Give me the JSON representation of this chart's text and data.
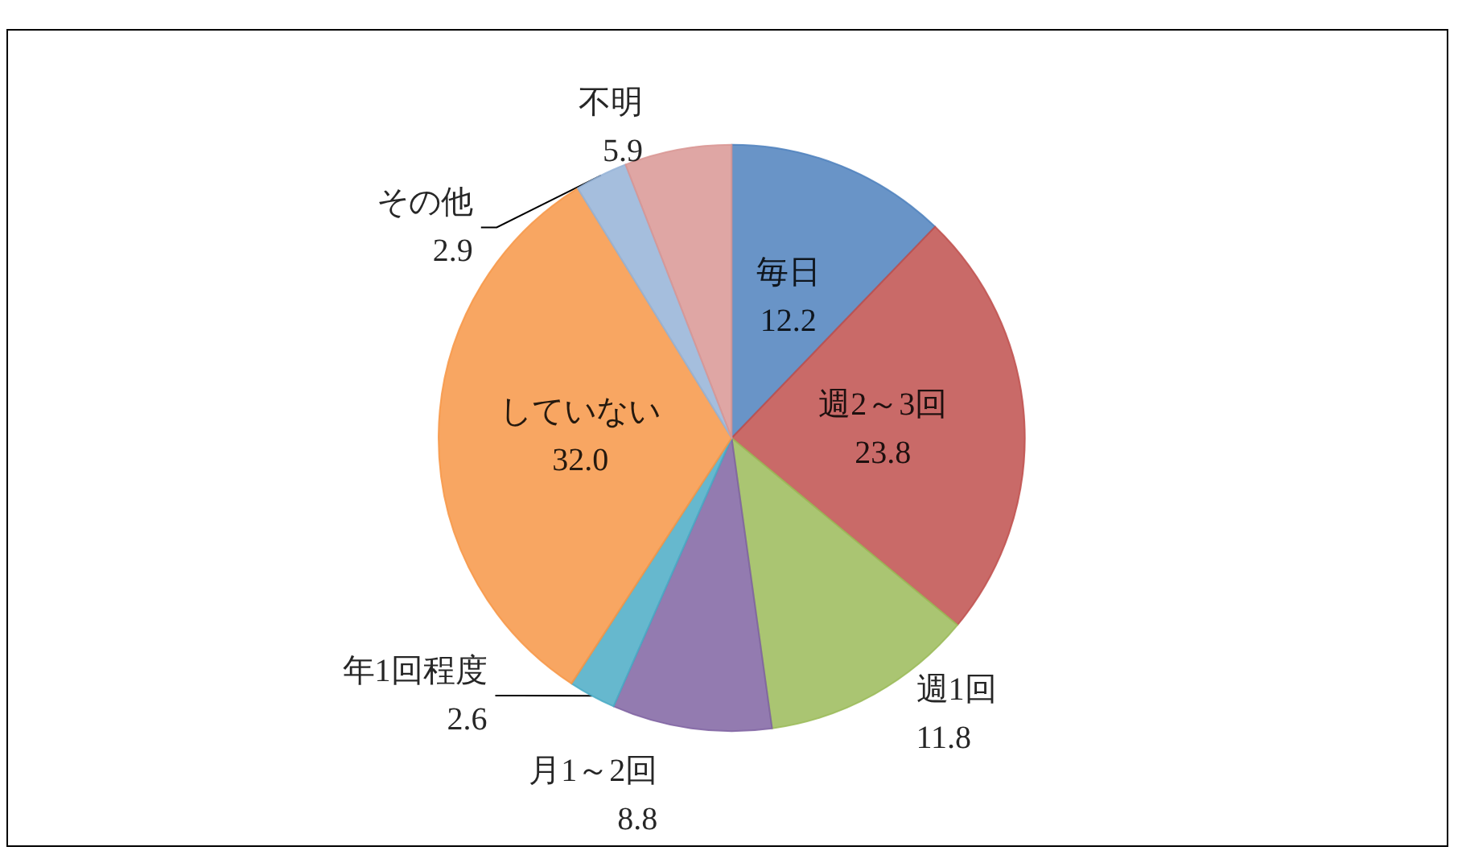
{
  "chart_data": {
    "type": "pie",
    "categories": [
      "毎日",
      "週2～3回",
      "週1回",
      "月1～2回",
      "年1回程度",
      "していない",
      "その他",
      "不明"
    ],
    "values": [
      12.2,
      23.8,
      11.8,
      8.8,
      2.6,
      32.0,
      2.9,
      5.9
    ],
    "value_labels": [
      "12.2",
      "23.8",
      "11.8",
      "8.8",
      "2.6",
      "32.0",
      "2.9",
      "5.9"
    ],
    "colors": [
      "#4f81bd",
      "#c0504d",
      "#9bbb59",
      "#8064a2",
      "#4bacc6",
      "#f79646",
      "#95b3d7",
      "#d99694"
    ],
    "legend": false
  }
}
